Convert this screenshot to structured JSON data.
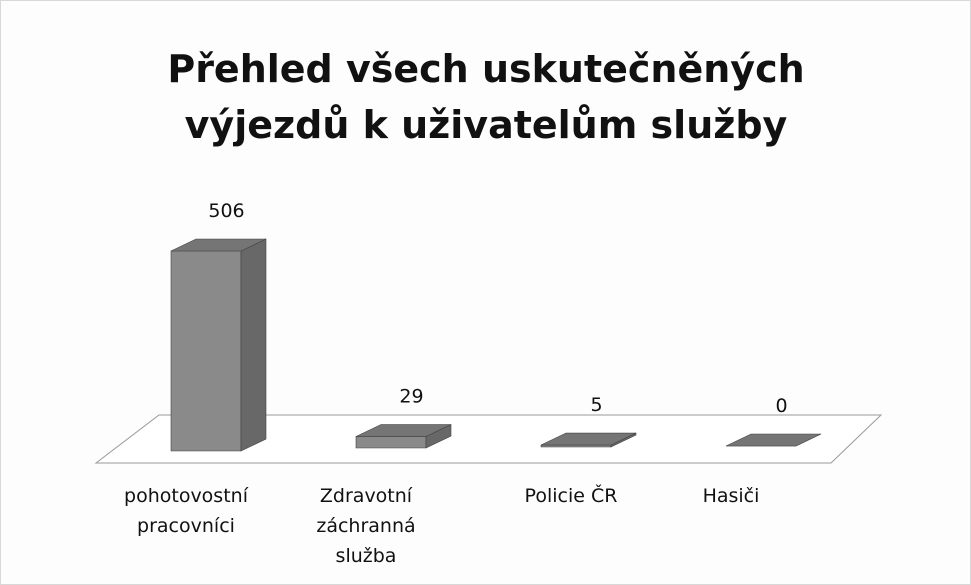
{
  "chart_data": {
    "type": "bar3d",
    "title": "Přehled všech uskutečněných výjezdů k uživatelům služby",
    "categories": [
      "pohotovostní pracovníci",
      "Zdravotní záchranná služba",
      "Policie ČR",
      "Hasiči"
    ],
    "values": [
      506,
      29,
      5,
      0
    ],
    "color": "#8a8a8a"
  }
}
